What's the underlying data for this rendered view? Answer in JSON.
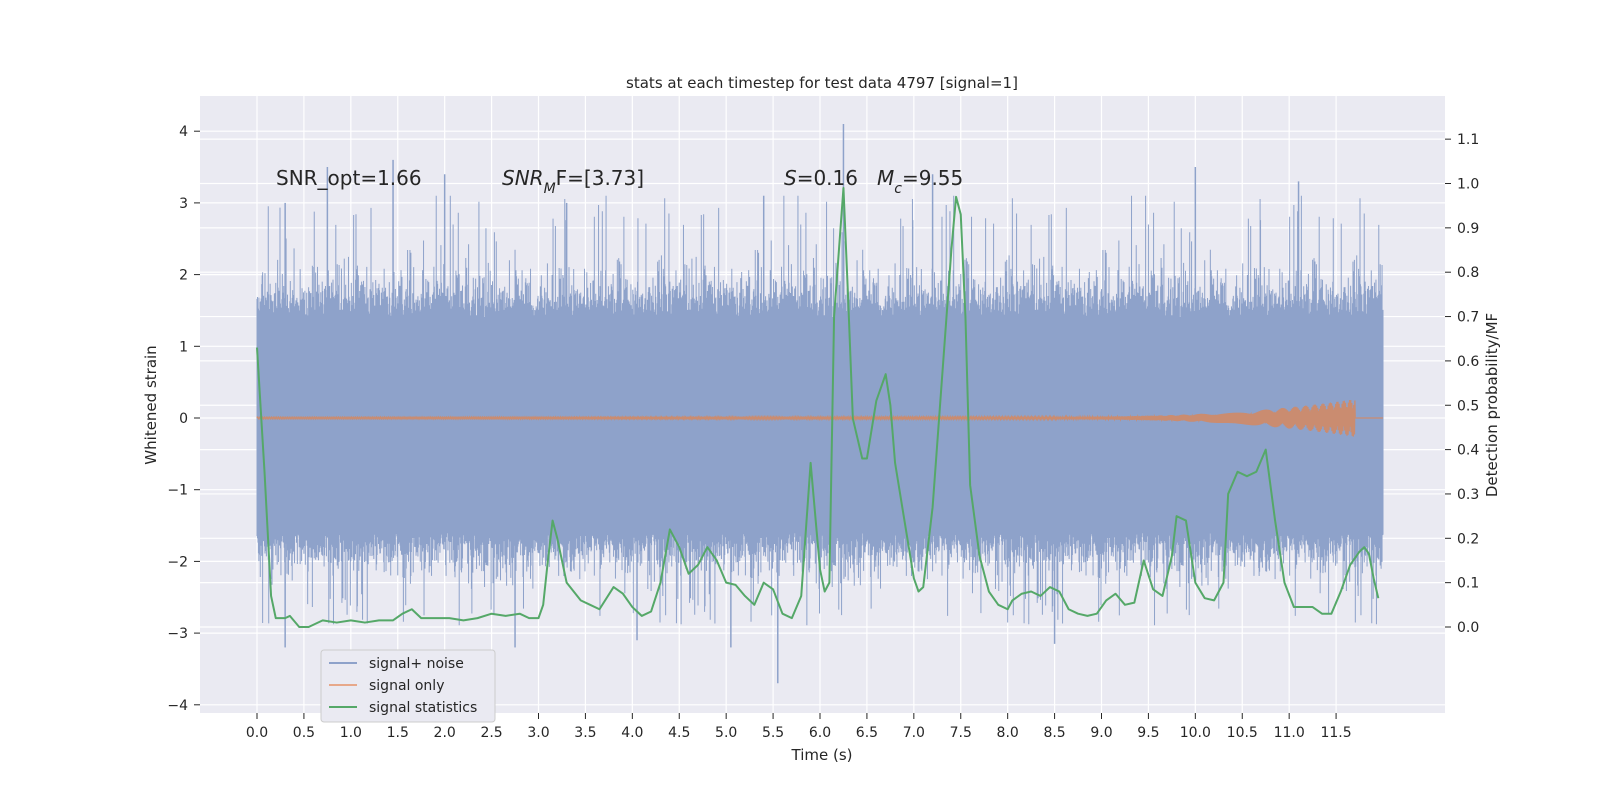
{
  "chart_data": {
    "type": "line",
    "title": "stats at each timestep for test data 4797 [signal=1]",
    "xlabel": "Time (s)",
    "ylabel_left": "Whitened strain",
    "ylabel_right": "Detection probability/MF",
    "xlim": [
      -0.6,
      12.35
    ],
    "ylim_left": [
      -4.1,
      4.5
    ],
    "ylim_right": [
      -0.19,
      1.21
    ],
    "x_ticks": [
      0.0,
      0.5,
      1.0,
      1.5,
      2.0,
      2.5,
      3.0,
      3.5,
      4.0,
      4.5,
      5.0,
      5.5,
      6.0,
      6.5,
      7.0,
      7.5,
      8.0,
      8.5,
      9.0,
      9.5,
      10.0,
      10.5,
      11.0,
      11.5
    ],
    "x_tick_labels": [
      "0.0",
      "0.5",
      "1.0",
      "1.5",
      "2.0",
      "2.5",
      "3.0",
      "3.5",
      "4.0",
      "4.5",
      "5.0",
      "5.5",
      "6.0",
      "6.5",
      "7.0",
      "7.5",
      "8.0",
      "8.5",
      "9.0",
      "9.5",
      "10.0",
      "10.5",
      "11.0",
      "11.5"
    ],
    "y_left_ticks": [
      4,
      3,
      2,
      1,
      0,
      -1,
      -2,
      -3,
      -4
    ],
    "y_left_tick_labels": [
      "4",
      "3",
      "2",
      "1",
      "0",
      "−1",
      "−2",
      "−3",
      "−4"
    ],
    "y_right_ticks": [
      1.1,
      1.0,
      0.9,
      0.8,
      0.7,
      0.6,
      0.5,
      0.4,
      0.3,
      0.2,
      0.1,
      0.0
    ],
    "y_right_tick_labels": [
      "1.1",
      "1.0",
      "0.9",
      "0.8",
      "0.7",
      "0.6",
      "0.5",
      "0.4",
      "0.3",
      "0.2",
      "0.1",
      "0.0"
    ],
    "annotations": [
      {
        "text": "SNR_opt=1.66"
      },
      {
        "text": "SNR",
        "sub": "M",
        "rest": "F=[3.73]"
      },
      {
        "text": "S",
        "rest": "=0.16"
      },
      {
        "text": "M",
        "sub": "c",
        "rest": "=9.55"
      }
    ],
    "legend": {
      "position": "lower-left",
      "entries": [
        "signal+ noise",
        "signal only",
        "signal statistics"
      ]
    },
    "colors": {
      "noise": "#8ea2ca",
      "signal": "#dd8452",
      "stats": "#55a868",
      "background": "#eaeaf2",
      "grid": "#ffffff"
    },
    "series": [
      {
        "name": "signal+ noise",
        "axis": "left",
        "x_range": [
          0.0,
          12.0
        ],
        "core_band": [
          -1.6,
          1.4
        ],
        "spike_points": [
          [
            0.3,
            3.0
          ],
          [
            0.75,
            3.5
          ],
          [
            1.45,
            3.6
          ],
          [
            2.0,
            3.4
          ],
          [
            3.3,
            3.0
          ],
          [
            5.4,
            3.1
          ],
          [
            6.25,
            4.1
          ],
          [
            7.2,
            3.4
          ],
          [
            10.0,
            3.5
          ],
          [
            11.1,
            3.3
          ],
          [
            0.3,
            -3.2
          ],
          [
            2.75,
            -3.2
          ],
          [
            4.05,
            -3.1
          ],
          [
            5.05,
            -3.2
          ],
          [
            5.55,
            -3.7
          ],
          [
            8.5,
            -3.15
          ]
        ]
      },
      {
        "name": "signal only",
        "axis": "left",
        "x_range": [
          0.0,
          12.0
        ],
        "chirp_start": 8.0,
        "chirp_peak_time": 11.7,
        "chirp_peak_amp": 0.25
      },
      {
        "name": "signal statistics",
        "axis": "right",
        "x": [
          0.0,
          0.08,
          0.15,
          0.2,
          0.3,
          0.35,
          0.45,
          0.55,
          0.7,
          0.85,
          1.0,
          1.15,
          1.3,
          1.45,
          1.55,
          1.65,
          1.75,
          1.9,
          2.05,
          2.2,
          2.35,
          2.5,
          2.65,
          2.8,
          2.9,
          3.0,
          3.05,
          3.1,
          3.15,
          3.2,
          3.3,
          3.45,
          3.55,
          3.65,
          3.8,
          3.9,
          4.0,
          4.1,
          4.2,
          4.3,
          4.4,
          4.5,
          4.6,
          4.7,
          4.8,
          4.9,
          5.0,
          5.1,
          5.2,
          5.3,
          5.4,
          5.5,
          5.6,
          5.7,
          5.8,
          5.9,
          6.0,
          6.05,
          6.1,
          6.15,
          6.25,
          6.3,
          6.35,
          6.45,
          6.5,
          6.6,
          6.7,
          6.75,
          6.8,
          6.9,
          7.0,
          7.05,
          7.1,
          7.2,
          7.3,
          7.4,
          7.45,
          7.5,
          7.55,
          7.6,
          7.7,
          7.8,
          7.9,
          8.0,
          8.05,
          8.15,
          8.25,
          8.35,
          8.45,
          8.55,
          8.65,
          8.75,
          8.85,
          8.95,
          9.05,
          9.15,
          9.25,
          9.35,
          9.45,
          9.55,
          9.65,
          9.75,
          9.8,
          9.9,
          10.0,
          10.1,
          10.2,
          10.3,
          10.35,
          10.45,
          10.55,
          10.65,
          10.75,
          10.85,
          10.95,
          11.05,
          11.15,
          11.25,
          11.35,
          11.45,
          11.55,
          11.65,
          11.75,
          11.8,
          11.85,
          11.9,
          11.95
        ],
        "values": [
          0.63,
          0.35,
          0.07,
          0.02,
          0.02,
          0.025,
          0.0,
          0.0,
          0.015,
          0.01,
          0.015,
          0.01,
          0.015,
          0.015,
          0.03,
          0.04,
          0.02,
          0.02,
          0.02,
          0.015,
          0.02,
          0.03,
          0.025,
          0.03,
          0.02,
          0.02,
          0.05,
          0.15,
          0.24,
          0.2,
          0.1,
          0.06,
          0.05,
          0.04,
          0.09,
          0.075,
          0.045,
          0.025,
          0.035,
          0.1,
          0.22,
          0.18,
          0.12,
          0.14,
          0.18,
          0.15,
          0.1,
          0.095,
          0.07,
          0.05,
          0.1,
          0.085,
          0.03,
          0.02,
          0.07,
          0.37,
          0.13,
          0.08,
          0.1,
          0.7,
          0.99,
          0.74,
          0.47,
          0.38,
          0.38,
          0.51,
          0.57,
          0.5,
          0.37,
          0.24,
          0.11,
          0.08,
          0.09,
          0.27,
          0.56,
          0.85,
          0.97,
          0.93,
          0.7,
          0.32,
          0.16,
          0.08,
          0.05,
          0.04,
          0.06,
          0.075,
          0.08,
          0.07,
          0.09,
          0.08,
          0.04,
          0.03,
          0.025,
          0.03,
          0.06,
          0.075,
          0.05,
          0.055,
          0.15,
          0.085,
          0.07,
          0.16,
          0.25,
          0.24,
          0.1,
          0.065,
          0.06,
          0.1,
          0.3,
          0.35,
          0.34,
          0.35,
          0.4,
          0.24,
          0.1,
          0.045,
          0.045,
          0.045,
          0.03,
          0.03,
          0.08,
          0.14,
          0.17,
          0.18,
          0.165,
          0.11,
          0.065
        ]
      }
    ]
  }
}
